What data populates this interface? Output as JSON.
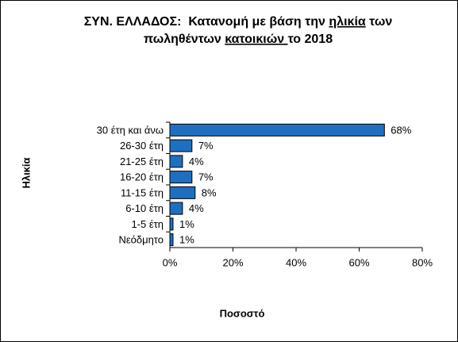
{
  "chart_data": {
    "type": "hbar",
    "title": [
      [
        "ΣΥΝ. ΕΛΛΑΔΟΣ:  Κατανομή με βάση την ",
        "ηλικία",
        " των"
      ],
      [
        "πωληθέντων ",
        "κατοικιών ",
        "το 2018"
      ]
    ],
    "title_underlined": [
      [
        1
      ],
      [
        1
      ]
    ],
    "xlabel": "Ποσοστό",
    "ylabel": "Ηλικία",
    "categories": [
      "30 έτη και άνω",
      "26-30 έτη",
      "21-25 έτη",
      "16-20 έτη",
      "11-15 έτη",
      "6-10 έτη",
      "1-5 έτη",
      "Νεόδμητο"
    ],
    "values": [
      68,
      7,
      4,
      7,
      8,
      4,
      1,
      1
    ],
    "value_labels": [
      "68%",
      "7%",
      "4%",
      "7%",
      "8%",
      "4%",
      "1%",
      "1%"
    ],
    "color": "#1f6fc0",
    "xlim": [
      0,
      80
    ],
    "xticks": [
      {
        "value": 0,
        "label": "0%"
      },
      {
        "value": 20,
        "label": "20%"
      },
      {
        "value": 40,
        "label": "40%"
      },
      {
        "value": 60,
        "label": "60%"
      },
      {
        "value": 80,
        "label": "80%"
      }
    ],
    "grid": false
  }
}
